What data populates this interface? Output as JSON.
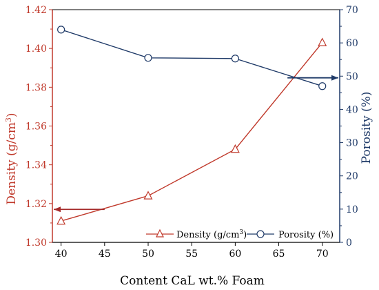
{
  "chart_data": {
    "type": "line",
    "x": [
      40,
      50,
      60,
      70
    ],
    "xlabel": "Content CaL wt.% Foam",
    "xlim": [
      39,
      72
    ],
    "xticks": [
      40,
      45,
      50,
      55,
      60,
      65,
      70
    ],
    "ylabel_left": "Density (g/cm",
    "ylabel_left_sup": "3",
    "ylabel_left_tail": ")",
    "ylim_left": [
      1.3,
      1.42
    ],
    "yticks_left": [
      "1.30",
      "1.32",
      "1.34",
      "1.36",
      "1.38",
      "1.40",
      "1.42"
    ],
    "ylabel_right": "Porosity (%)",
    "ylim_right": [
      0,
      70
    ],
    "yticks_right": [
      "0",
      "10",
      "20",
      "30",
      "40",
      "50",
      "60",
      "70"
    ],
    "series": [
      {
        "name": "Density (g/cm",
        "name_sup": "3",
        "name_tail": ")",
        "axis": "left",
        "marker": "triangle",
        "color": "#c0392b",
        "values": [
          1.311,
          1.324,
          1.348,
          1.403
        ]
      },
      {
        "name": "Porosity (%)",
        "axis": "right",
        "marker": "circle",
        "color": "#1f3a68",
        "values": [
          64.0,
          55.5,
          55.3,
          47.0
        ]
      }
    ],
    "legend_position": "bottom-right",
    "grid": false,
    "annotations": [
      {
        "type": "arrow",
        "direction": "left",
        "axis": "left",
        "from_x": 45,
        "to_x": 39,
        "y": 1.317,
        "color": "#a52a2a"
      },
      {
        "type": "arrow",
        "direction": "right",
        "axis": "right",
        "from_x": 66,
        "to_x": 72,
        "y": 49.5,
        "color": "#1f3a68"
      }
    ]
  }
}
